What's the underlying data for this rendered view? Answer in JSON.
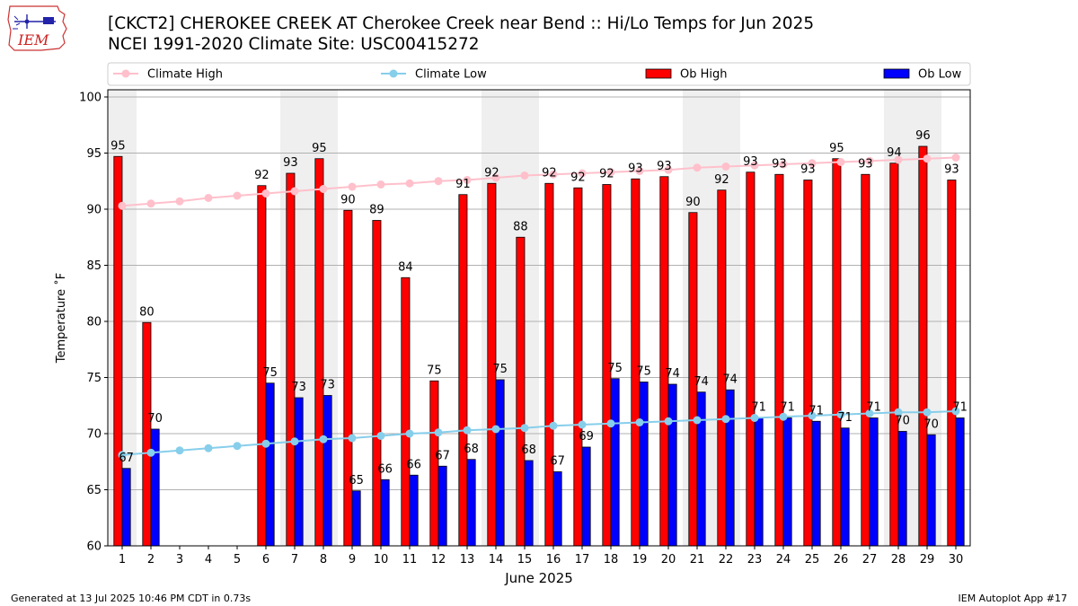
{
  "header": {
    "title_line1": "[CKCT2] CHEROKEE CREEK  AT Cherokee Creek near Bend :: Hi/Lo Temps for Jun 2025",
    "title_line2": "NCEI 1991-2020 Climate Site: USC00415272",
    "logo_text": "IEM"
  },
  "footer": {
    "left": "Generated at 13 Jul 2025 10:46 PM CDT in 0.73s",
    "right": "IEM Autoplot App #17"
  },
  "colors": {
    "ob_high": "#ff0000",
    "ob_low": "#0000ff",
    "climate_high": "#ffc0cb",
    "climate_low": "#87ceeb",
    "weekend_band": "#efefef",
    "grid": "#b0b0b0"
  },
  "chart_data": {
    "type": "bar",
    "xlabel": "June 2025",
    "ylabel": "Temperature ˚F",
    "ylim": [
      60,
      100
    ],
    "yticks": [
      60,
      65,
      70,
      75,
      80,
      85,
      90,
      95,
      100
    ],
    "grid": "horizontal",
    "legend_position": "top",
    "categories": [
      "1",
      "2",
      "3",
      "4",
      "5",
      "6",
      "7",
      "8",
      "9",
      "10",
      "11",
      "12",
      "13",
      "14",
      "15",
      "16",
      "17",
      "18",
      "19",
      "20",
      "21",
      "22",
      "23",
      "24",
      "25",
      "26",
      "27",
      "28",
      "29",
      "30"
    ],
    "weekend_days": [
      1,
      7,
      8,
      14,
      15,
      21,
      22,
      28,
      29
    ],
    "legend": [
      "Climate High",
      "Climate Low",
      "Ob High",
      "Ob Low"
    ],
    "series": [
      {
        "name": "Ob High",
        "type": "bar",
        "labels": true,
        "values": [
          94.7,
          79.9,
          null,
          null,
          null,
          92.1,
          93.2,
          94.5,
          89.9,
          89.0,
          83.9,
          74.7,
          91.3,
          92.3,
          87.5,
          92.3,
          91.9,
          92.2,
          92.7,
          92.9,
          89.7,
          91.7,
          93.3,
          93.1,
          92.6,
          94.5,
          93.1,
          94.1,
          95.6,
          92.6
        ]
      },
      {
        "name": "Ob Low",
        "type": "bar",
        "labels": true,
        "values": [
          66.9,
          70.4,
          null,
          null,
          null,
          74.5,
          73.2,
          73.4,
          64.9,
          65.9,
          66.3,
          67.1,
          67.7,
          74.8,
          67.6,
          66.6,
          68.8,
          74.9,
          74.6,
          74.4,
          73.7,
          73.9,
          71.4,
          71.4,
          71.1,
          70.5,
          71.4,
          70.2,
          69.9,
          71.4
        ]
      },
      {
        "name": "Climate High",
        "type": "line",
        "values": [
          90.3,
          90.5,
          90.7,
          91.0,
          91.2,
          91.4,
          91.6,
          91.8,
          92.0,
          92.2,
          92.3,
          92.5,
          92.6,
          92.8,
          93.0,
          93.1,
          93.2,
          93.3,
          93.4,
          93.5,
          93.7,
          93.8,
          93.9,
          94.0,
          94.1,
          94.2,
          94.3,
          94.4,
          94.5,
          94.6
        ]
      },
      {
        "name": "Climate Low",
        "type": "line",
        "values": [
          68.1,
          68.3,
          68.5,
          68.7,
          68.9,
          69.1,
          69.3,
          69.5,
          69.6,
          69.8,
          70.0,
          70.1,
          70.3,
          70.4,
          70.5,
          70.7,
          70.8,
          70.9,
          71.0,
          71.1,
          71.2,
          71.3,
          71.4,
          71.5,
          71.6,
          71.7,
          71.8,
          71.9,
          71.9,
          72.0
        ]
      }
    ]
  }
}
